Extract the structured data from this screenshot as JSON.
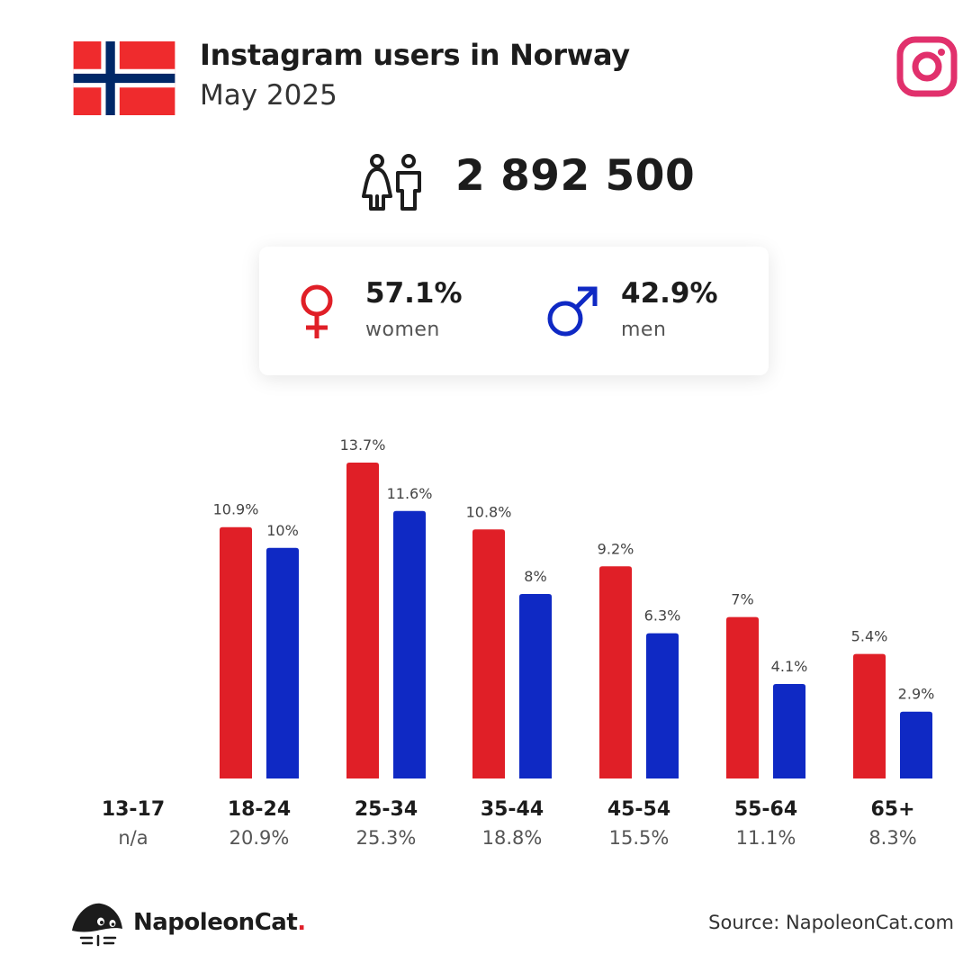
{
  "header": {
    "title": "Instagram users in Norway",
    "subtitle": "May 2025"
  },
  "total": {
    "value": "2 892 500"
  },
  "gender": {
    "women": {
      "value": "57.1%",
      "label": "women"
    },
    "men": {
      "value": "42.9%",
      "label": "men"
    }
  },
  "colors": {
    "women": "#e01f27",
    "men": "#0f29c4",
    "instagram": "#e1306c",
    "flag_red": "#ef2b2d",
    "flag_blue": "#002868"
  },
  "icons": [
    "norway-flag-icon",
    "instagram-icon",
    "people-icon",
    "female-symbol-icon",
    "male-symbol-icon",
    "napoleoncat-logo-icon"
  ],
  "chart_data": {
    "type": "bar",
    "categories": [
      "13-17",
      "18-24",
      "25-34",
      "35-44",
      "45-54",
      "55-64",
      "65+"
    ],
    "category_totals": [
      "n/a",
      "20.9%",
      "25.3%",
      "18.8%",
      "15.5%",
      "11.1%",
      "8.3%"
    ],
    "series": [
      {
        "values": [
          null,
          10.9,
          13.7,
          10.8,
          9.2,
          7,
          5.4
        ],
        "labels": [
          "",
          "10.9%",
          "13.7%",
          "10.8%",
          "9.2%",
          "7%",
          "5.4%"
        ]
      },
      {
        "values": [
          null,
          10,
          11.6,
          8,
          6.3,
          4.1,
          2.9
        ],
        "labels": [
          "",
          "10%",
          "11.6%",
          "8%",
          "6.3%",
          "4.1%",
          "2.9%"
        ]
      }
    ],
    "ylim": [
      0,
      13.7
    ],
    "grid": false
  },
  "footer": {
    "brand_name": "NapoleonCat",
    "brand_dot": ".",
    "source": "Source: NapoleonCat.com"
  }
}
